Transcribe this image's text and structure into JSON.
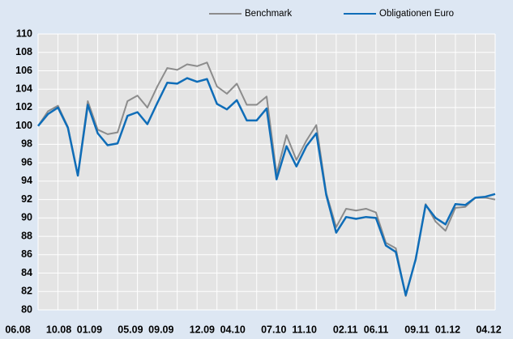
{
  "chart_data": {
    "type": "line",
    "categories": [
      "06.08",
      null,
      null,
      null,
      "10.08",
      null,
      null,
      "01.09",
      null,
      null,
      null,
      "05.09",
      null,
      null,
      "09.09",
      null,
      null,
      null,
      "12.09",
      null,
      null,
      "04.10",
      null,
      null,
      null,
      "07.10",
      null,
      null,
      "11.10",
      null,
      null,
      null,
      "02.11",
      null,
      null,
      "06.11",
      null,
      null,
      null,
      "09.11",
      null,
      null,
      "01.12",
      null,
      null,
      null,
      "04.12"
    ],
    "series": [
      {
        "name": "Benchmark",
        "color": "#8c8c8c",
        "values": [
          100,
          101.6,
          102.2,
          99.9,
          94.7,
          102.7,
          99.6,
          99.1,
          99.3,
          102.7,
          103.3,
          102.0,
          104.3,
          106.3,
          106.1,
          106.7,
          106.5,
          106.9,
          104.3,
          103.5,
          104.6,
          102.3,
          102.3,
          103.2,
          94.8,
          99.0,
          96.3,
          98.4,
          100.1,
          92.7,
          89.0,
          91.0,
          90.8,
          91.0,
          90.6,
          87.3,
          86.7,
          81.5,
          85.5,
          91.5,
          89.6,
          88.6,
          91.1,
          91.2,
          92.2,
          92.2,
          92.0
        ]
      },
      {
        "name": "Obligationen Euro",
        "color": "#0f6db8",
        "values": [
          100,
          101.3,
          102.0,
          99.8,
          94.6,
          102.3,
          99.2,
          97.9,
          98.1,
          101.1,
          101.5,
          100.2,
          102.5,
          104.7,
          104.6,
          105.2,
          104.8,
          105.1,
          102.4,
          101.8,
          102.8,
          100.6,
          100.6,
          101.9,
          94.2,
          97.8,
          95.6,
          97.8,
          99.2,
          92.5,
          88.4,
          90.1,
          89.9,
          90.1,
          90.0,
          87.0,
          86.3,
          81.6,
          85.5,
          91.4,
          90.0,
          89.3,
          91.5,
          91.4,
          92.2,
          92.3,
          92.6
        ]
      }
    ],
    "ylim": [
      80,
      110
    ],
    "yticks": [
      80,
      82,
      84,
      86,
      88,
      90,
      92,
      94,
      96,
      98,
      100,
      102,
      104,
      106,
      108,
      110
    ],
    "grid": true
  }
}
